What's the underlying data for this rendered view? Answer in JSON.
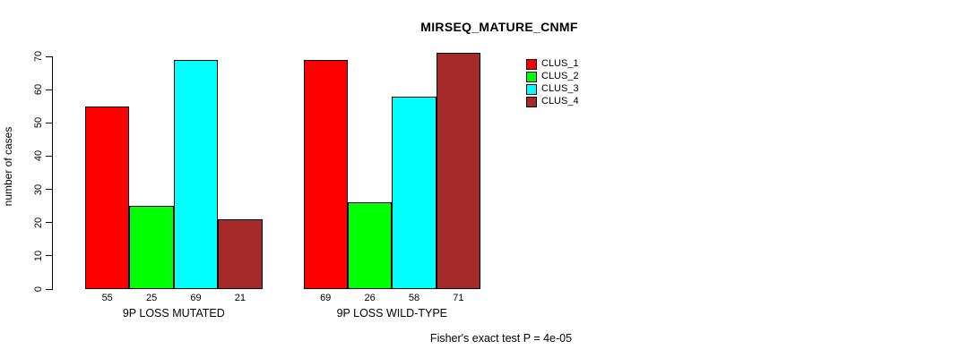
{
  "chart_data": {
    "type": "bar",
    "title": "MIRSEQ_MATURE_CNMF",
    "ylabel": "number of cases",
    "xlabel": "",
    "categories": [
      "9P LOSS MUTATED",
      "9P LOSS WILD-TYPE"
    ],
    "series": [
      {
        "name": "CLUS_1",
        "color": "#FF0000",
        "values": [
          55,
          69
        ]
      },
      {
        "name": "CLUS_2",
        "color": "#00FF00",
        "values": [
          25,
          26
        ]
      },
      {
        "name": "CLUS_3",
        "color": "#00FFFF",
        "values": [
          69,
          58
        ]
      },
      {
        "name": "CLUS_4",
        "color": "#A52A2A",
        "values": [
          21,
          71
        ]
      }
    ],
    "yticks": [
      0,
      10,
      20,
      30,
      40,
      50,
      60,
      70
    ],
    "ylim": [
      0,
      70
    ],
    "grid": false,
    "bar_outline_color": "#000000",
    "legend_position": "top-right",
    "bar_value_labels_shown": true,
    "annotation": "Fisher's exact test P = 4e-05"
  }
}
